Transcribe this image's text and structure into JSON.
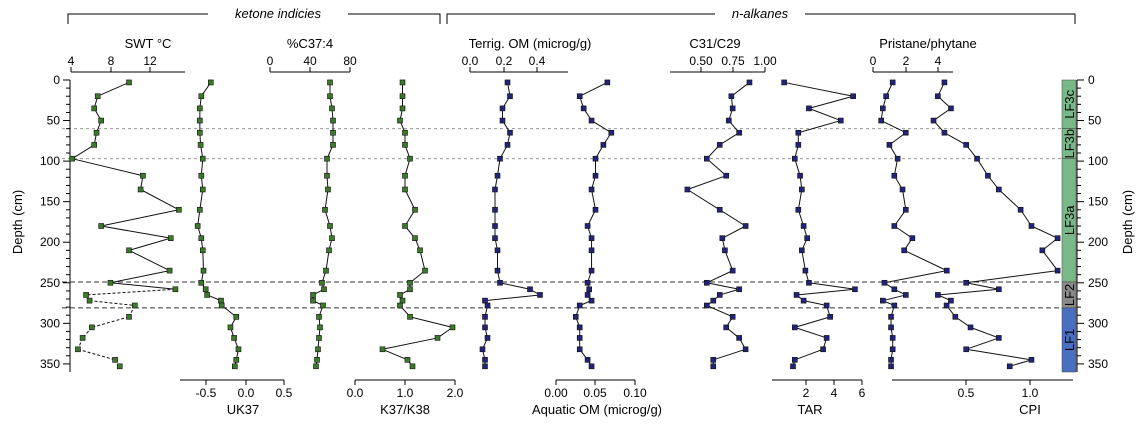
{
  "chart_data": {
    "type": "line",
    "groups": [
      {
        "label": "ketone indicies",
        "italic": true
      },
      {
        "label": "n-alkanes",
        "italic": true
      }
    ],
    "y_axis": {
      "label": "Depth (cm)",
      "ylim": [
        0,
        360
      ],
      "reversed": true,
      "ticks": [
        0,
        50,
        100,
        150,
        200,
        250,
        300,
        350
      ]
    },
    "colors": {
      "ketone_marker": "#3a7a2a",
      "alkane_marker": "#23237a",
      "line": "#111111",
      "LF3c": "#7ab88a",
      "LF3b": "#7ab88a",
      "LF3a": "#7ab88a",
      "LF2": "#8a8a8a",
      "LF1": "#4a6fc0"
    },
    "boundaries": [
      {
        "depth": 60,
        "style": "dotted"
      },
      {
        "depth": 97,
        "style": "dotted"
      },
      {
        "depth": 249,
        "style": "dashed"
      },
      {
        "depth": 281,
        "style": "dashed"
      }
    ],
    "lithofacies": [
      {
        "name": "LF3c",
        "top": 0,
        "bottom": 60
      },
      {
        "name": "LF3b",
        "top": 60,
        "bottom": 97
      },
      {
        "name": "LF3a",
        "top": 97,
        "bottom": 249
      },
      {
        "name": "LF2",
        "top": 249,
        "bottom": 281
      },
      {
        "name": "LF1",
        "top": 281,
        "bottom": 360
      }
    ],
    "depths": [
      3,
      20,
      35,
      50,
      65,
      80,
      97,
      118,
      135,
      160,
      180,
      195,
      210,
      235,
      250,
      258,
      265,
      272,
      278,
      292,
      305,
      318,
      332,
      345,
      353
    ],
    "series": [
      {
        "name": "SWT °C",
        "axis_position": "top",
        "tick_labels": [
          "4",
          "8",
          "12"
        ],
        "xlim": [
          4,
          14
        ],
        "values": [
          9.0,
          6.3,
          6.0,
          6.6,
          6.2,
          6.0,
          4.1,
          10.2,
          10.0,
          13.3,
          6.6,
          12.6,
          9.0,
          12.5,
          7.4,
          13.0,
          5.3,
          5.6,
          9.5,
          9.0,
          5.8,
          5.0,
          4.6,
          7.8,
          8.2
        ],
        "dashed_segments": [
          15,
          16,
          17,
          18,
          19,
          20,
          21,
          22,
          23,
          24
        ]
      },
      {
        "name": "UK37",
        "axis_position": "bottom",
        "tick_labels": [
          "-0.5",
          "0.0",
          "0.5"
        ],
        "xlim": [
          -0.85,
          0.55
        ],
        "values": [
          -0.4,
          -0.53,
          -0.55,
          -0.55,
          -0.55,
          -0.54,
          -0.51,
          -0.53,
          -0.51,
          -0.55,
          -0.58,
          -0.53,
          -0.51,
          -0.5,
          -0.53,
          -0.47,
          -0.45,
          -0.26,
          -0.25,
          -0.05,
          -0.13,
          -0.08,
          -0.02,
          -0.05,
          -0.07
        ]
      },
      {
        "name": "%C37:4",
        "axis_position": "top",
        "tick_labels": [
          "0",
          "40",
          "80"
        ],
        "xlim": [
          0,
          80
        ],
        "values": [
          60,
          60,
          62,
          63,
          63,
          63,
          57,
          57,
          58,
          55,
          60,
          62,
          59,
          56,
          52,
          54,
          43,
          43,
          53,
          49,
          50,
          49,
          48,
          47,
          46
        ]
      },
      {
        "name": "K37/K38",
        "axis_position": "bottom",
        "tick_labels": [
          "0.0",
          "1.0",
          "2.0"
        ],
        "xlim": [
          0,
          2
        ],
        "values": [
          0.95,
          0.95,
          0.95,
          0.9,
          1.0,
          1.0,
          1.1,
          1.0,
          1.0,
          1.2,
          1.0,
          1.2,
          1.3,
          1.4,
          1.1,
          1.1,
          0.9,
          0.95,
          0.9,
          1.1,
          1.95,
          1.65,
          0.55,
          1.05,
          1.15
        ]
      },
      {
        "name": "Terrig. OM (microg/g)",
        "axis_position": "top",
        "tick_labels": [
          "0.0",
          "0.2",
          "0.4"
        ],
        "xlim": [
          0,
          0.4
        ],
        "values": [
          0.15,
          0.16,
          0.13,
          0.13,
          0.16,
          0.15,
          0.12,
          0.11,
          0.1,
          0.1,
          0.1,
          0.1,
          0.11,
          0.11,
          0.12,
          0.24,
          0.28,
          0.06,
          0.07,
          0.06,
          0.06,
          0.07,
          0.05,
          0.06,
          0.06
        ]
      },
      {
        "name": "Aquatic OM (microg/g)",
        "axis_position": "bottom",
        "tick_labels": [
          "0.00",
          "0.05",
          "0.10"
        ],
        "xlim": [
          0,
          0.1
        ],
        "values": [
          0.065,
          0.03,
          0.035,
          0.045,
          0.07,
          0.06,
          0.05,
          0.05,
          0.045,
          0.05,
          0.04,
          0.045,
          0.045,
          0.045,
          0.04,
          0.042,
          0.04,
          0.045,
          0.03,
          0.025,
          0.03,
          0.03,
          0.03,
          0.04,
          0.045
        ]
      },
      {
        "name": "C31/C29",
        "axis_position": "top",
        "tick_labels": [
          "0.50",
          "0.75",
          "1.00"
        ],
        "xlim": [
          0.25,
          1.0
        ],
        "values": [
          0.88,
          0.74,
          0.75,
          0.72,
          0.8,
          0.65,
          0.55,
          0.7,
          0.4,
          0.65,
          0.85,
          0.67,
          0.69,
          0.75,
          0.55,
          0.8,
          0.65,
          0.6,
          0.55,
          0.75,
          0.7,
          0.8,
          0.85,
          0.6,
          0.6
        ]
      },
      {
        "name": "TAR",
        "axis_position": "bottom",
        "tick_labels": [
          "2",
          "4",
          "6"
        ],
        "xlim": [
          0.8,
          6
        ],
        "values": [
          1.6,
          5.5,
          3.0,
          4.8,
          2.4,
          2.4,
          2.2,
          2.5,
          2.6,
          2.4,
          2.7,
          2.9,
          2.6,
          2.8,
          3.0,
          5.6,
          2.3,
          2.7,
          4.0,
          4.2,
          2.2,
          4.0,
          3.8,
          2.2,
          2.1
        ]
      },
      {
        "name": "Pristane/phytane",
        "axis_position": "top",
        "tick_labels": [
          "0",
          "2",
          "4"
        ],
        "xlim": [
          0,
          5
        ],
        "values": [
          1.2,
          0.8,
          0.6,
          0.5,
          2.0,
          1.0,
          1.5,
          1.3,
          1.8,
          2.0,
          1.3,
          2.4,
          1.9,
          4.5,
          0.7,
          1.3,
          2.0,
          0.6,
          1.3,
          1.1,
          1.1,
          1.2,
          1.2,
          1.1,
          1.1
        ]
      },
      {
        "name": "CPI",
        "axis_position": "bottom",
        "tick_labels": [
          "0.5",
          "1.0"
        ],
        "xlim": [
          0.5,
          1.35
        ],
        "values": [
          0.75,
          0.72,
          0.78,
          0.7,
          0.75,
          0.85,
          0.9,
          0.95,
          1.0,
          1.1,
          1.15,
          1.27,
          1.2,
          1.27,
          0.85,
          1.0,
          0.72,
          0.78,
          0.76,
          0.8,
          0.87,
          1.0,
          0.85,
          1.15,
          1.05
        ]
      }
    ]
  }
}
